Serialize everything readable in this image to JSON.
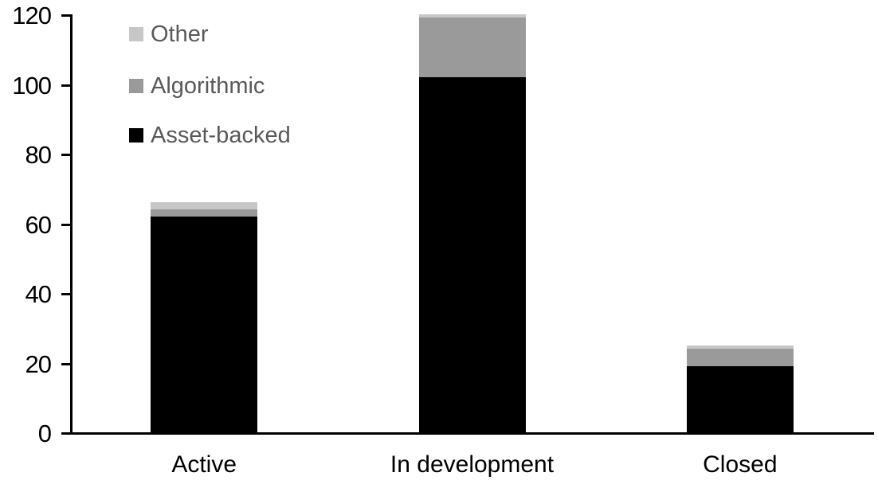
{
  "chart_data": {
    "type": "bar",
    "stacked": true,
    "title": "",
    "xlabel": "",
    "ylabel": "",
    "categories": [
      "Active",
      "In development",
      "Closed"
    ],
    "series": [
      {
        "name": "Asset-backed",
        "color": "#000000",
        "values": [
          62,
          102,
          19
        ]
      },
      {
        "name": "Algorithmic",
        "color": "#9a9a9a",
        "values": [
          2,
          17,
          5
        ]
      },
      {
        "name": "Other",
        "color": "#c7c7c7",
        "values": [
          2,
          1,
          1
        ]
      }
    ],
    "totals": [
      66,
      120,
      25
    ],
    "ylim": [
      0,
      120
    ],
    "yticks": [
      0,
      20,
      40,
      60,
      80,
      100,
      120
    ],
    "grid": false,
    "legend": {
      "position": "top-left",
      "order_top_to_bottom": [
        "Other",
        "Algorithmic",
        "Asset-backed"
      ],
      "text_color": "#595959"
    },
    "colors": {
      "axis": "#000000",
      "tick_label": "#000000",
      "background": "#ffffff"
    }
  }
}
